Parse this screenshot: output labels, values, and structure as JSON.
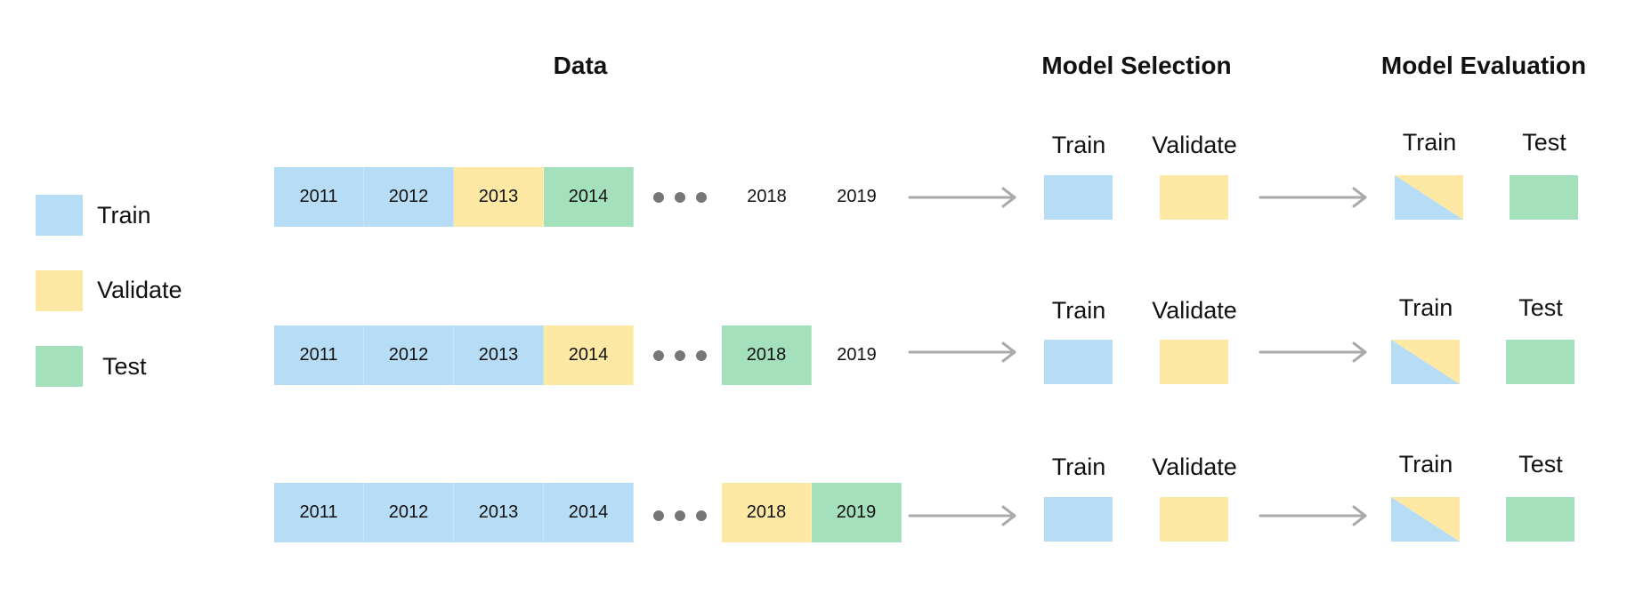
{
  "colors": {
    "train": "#b7dcf5",
    "validate": "#fde9a4",
    "test": "#a5e0bd",
    "blank": "#ffffff",
    "arrow": "#aaaaaa",
    "dot": "#777777"
  },
  "headings": {
    "data": "Data",
    "model_selection": "Model Selection",
    "model_evaluation": "Model Evaluation"
  },
  "legend": [
    {
      "label": "Train",
      "color": "train"
    },
    {
      "label": "Validate",
      "color": "validate"
    },
    {
      "label": "Test",
      "color": "test"
    }
  ],
  "rows": [
    {
      "cells_left": [
        {
          "year": "2011",
          "role": "train"
        },
        {
          "year": "2012",
          "role": "train"
        },
        {
          "year": "2013",
          "role": "validate"
        },
        {
          "year": "2014",
          "role": "test"
        }
      ],
      "cells_right": [
        {
          "year": "2018",
          "role": "blank"
        },
        {
          "year": "2019",
          "role": "blank"
        }
      ],
      "selection": {
        "train_label": "Train",
        "validate_label": "Validate"
      },
      "evaluation": {
        "train_label": "Train",
        "test_label": "Test"
      }
    },
    {
      "cells_left": [
        {
          "year": "2011",
          "role": "train"
        },
        {
          "year": "2012",
          "role": "train"
        },
        {
          "year": "2013",
          "role": "train"
        },
        {
          "year": "2014",
          "role": "validate"
        }
      ],
      "cells_right": [
        {
          "year": "2018",
          "role": "test"
        },
        {
          "year": "2019",
          "role": "blank"
        }
      ],
      "selection": {
        "train_label": "Train",
        "validate_label": "Validate"
      },
      "evaluation": {
        "train_label": "Train",
        "test_label": "Test"
      }
    },
    {
      "cells_left": [
        {
          "year": "2011",
          "role": "train"
        },
        {
          "year": "2012",
          "role": "train"
        },
        {
          "year": "2013",
          "role": "train"
        },
        {
          "year": "2014",
          "role": "train"
        }
      ],
      "cells_right": [
        {
          "year": "2018",
          "role": "validate"
        },
        {
          "year": "2019",
          "role": "test"
        }
      ],
      "selection": {
        "train_label": "Train",
        "validate_label": "Validate"
      },
      "evaluation": {
        "train_label": "Train",
        "test_label": "Test"
      }
    }
  ]
}
